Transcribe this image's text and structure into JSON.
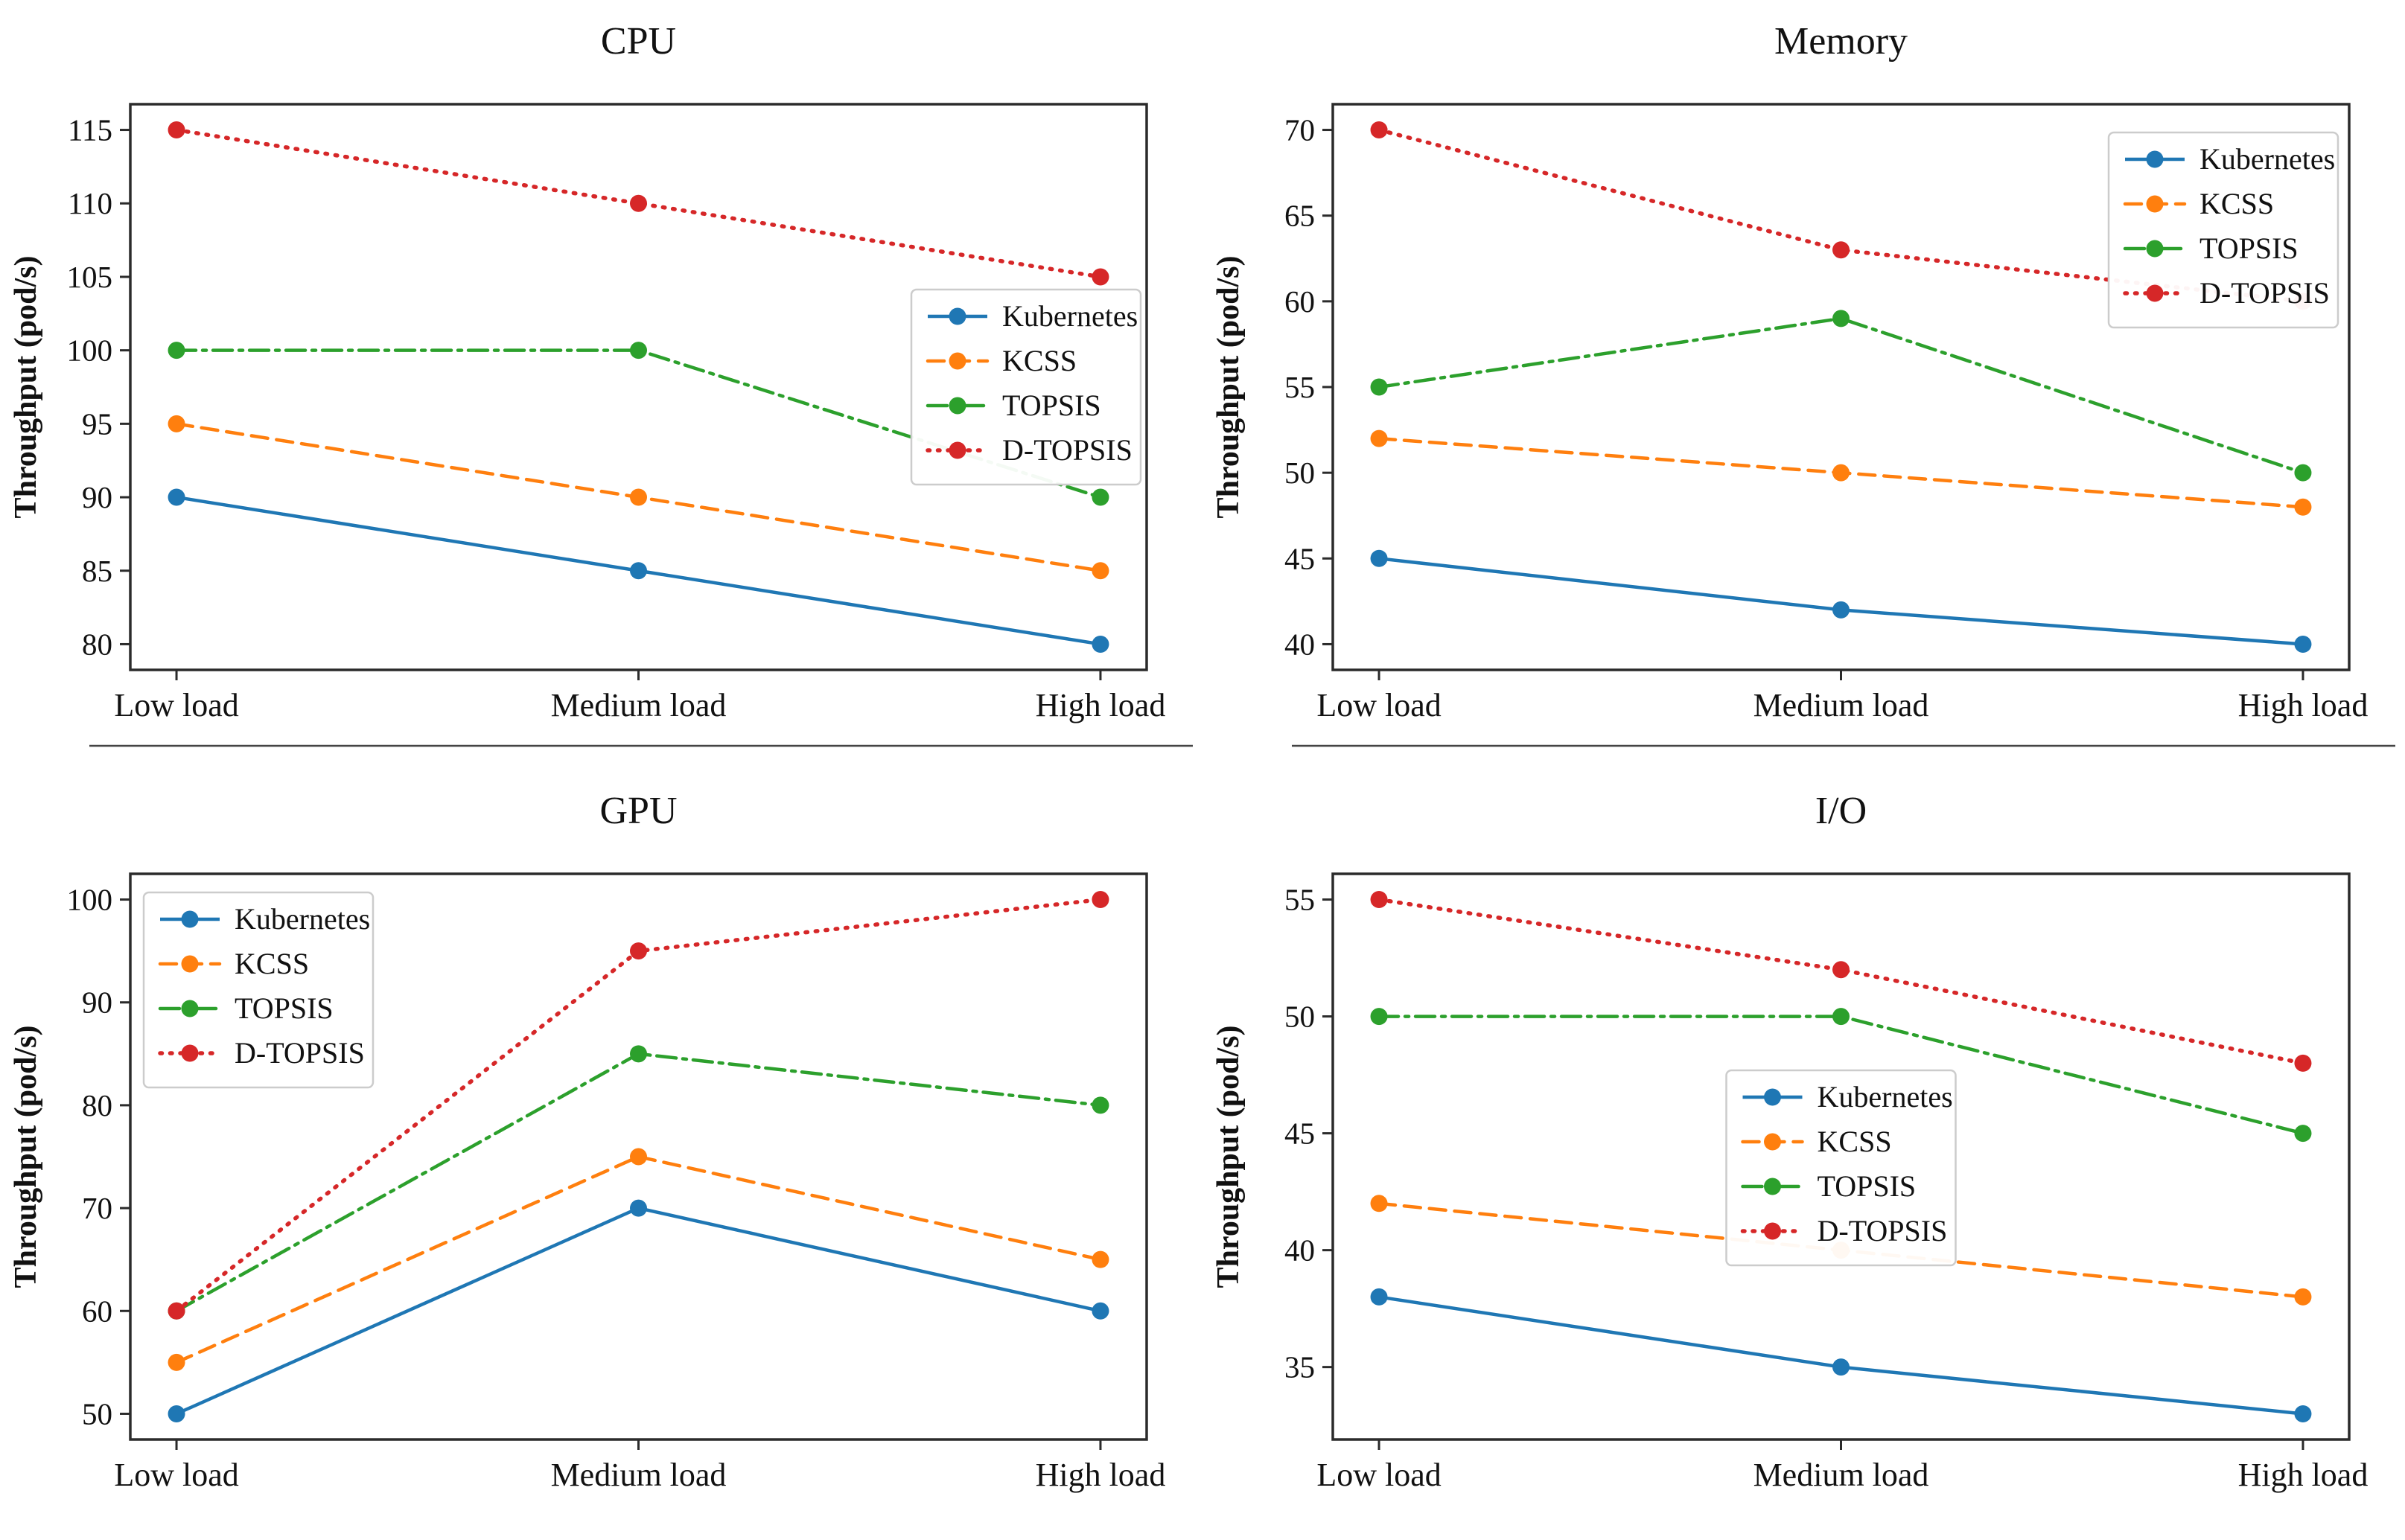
{
  "page": {
    "background": "#ffffff"
  },
  "axis": {
    "ylabel": "Throughput (pod/s)",
    "frame_color": "#2b2b2b",
    "tick_color": "#2b2b2b"
  },
  "chart_data": [
    {
      "type": "line",
      "title": "CPU",
      "ylabel": "Throughput (pod/s)",
      "categories": [
        "Low load",
        "Medium load",
        "High load"
      ],
      "series": [
        {
          "name": "Kubernetes",
          "color": "#1f77b4",
          "style": "solid",
          "values": [
            90,
            85,
            80
          ]
        },
        {
          "name": "KCSS",
          "color": "#ff7f0e",
          "style": "dashed",
          "values": [
            95,
            90,
            85
          ]
        },
        {
          "name": "TOPSIS",
          "color": "#2ca02c",
          "style": "dashdot",
          "values": [
            100,
            100,
            90
          ]
        },
        {
          "name": "D-TOPSIS",
          "color": "#d62728",
          "style": "dotted",
          "values": [
            115,
            110,
            105
          ]
        }
      ],
      "yticks": [
        80,
        85,
        90,
        95,
        100,
        105,
        110,
        115
      ],
      "ylim": [
        78.25,
        116.75
      ],
      "grid": false,
      "legend_loc": "center-right",
      "separator_below": true
    },
    {
      "type": "line",
      "title": "Memory",
      "ylabel": "Throughput (pod/s)",
      "categories": [
        "Low load",
        "Medium load",
        "High load"
      ],
      "series": [
        {
          "name": "Kubernetes",
          "color": "#1f77b4",
          "style": "solid",
          "values": [
            45,
            42,
            40
          ]
        },
        {
          "name": "KCSS",
          "color": "#ff7f0e",
          "style": "dashed",
          "values": [
            52,
            50,
            48
          ]
        },
        {
          "name": "TOPSIS",
          "color": "#2ca02c",
          "style": "dashdot",
          "values": [
            55,
            59,
            50
          ]
        },
        {
          "name": "D-TOPSIS",
          "color": "#d62728",
          "style": "dotted",
          "values": [
            70,
            63,
            60
          ]
        }
      ],
      "yticks": [
        40,
        45,
        50,
        55,
        60,
        65,
        70
      ],
      "ylim": [
        38.5,
        71.5
      ],
      "grid": false,
      "legend_loc": "top-right",
      "separator_below": true
    },
    {
      "type": "line",
      "title": "GPU",
      "ylabel": "Throughput (pod/s)",
      "categories": [
        "Low load",
        "Medium load",
        "High load"
      ],
      "series": [
        {
          "name": "Kubernetes",
          "color": "#1f77b4",
          "style": "solid",
          "values": [
            50,
            70,
            60
          ]
        },
        {
          "name": "KCSS",
          "color": "#ff7f0e",
          "style": "dashed",
          "values": [
            55,
            75,
            65
          ]
        },
        {
          "name": "TOPSIS",
          "color": "#2ca02c",
          "style": "dashdot",
          "values": [
            60,
            85,
            80
          ]
        },
        {
          "name": "D-TOPSIS",
          "color": "#d62728",
          "style": "dotted",
          "values": [
            60,
            95,
            100
          ]
        }
      ],
      "yticks": [
        50,
        60,
        70,
        80,
        90,
        100
      ],
      "ylim": [
        47.5,
        102.5
      ],
      "grid": false,
      "legend_loc": "top-left",
      "separator_below": false
    },
    {
      "type": "line",
      "title": "I/O",
      "ylabel": "Throughput (pod/s)",
      "categories": [
        "Low load",
        "Medium load",
        "High load"
      ],
      "series": [
        {
          "name": "Kubernetes",
          "color": "#1f77b4",
          "style": "solid",
          "values": [
            38,
            35,
            33
          ]
        },
        {
          "name": "KCSS",
          "color": "#ff7f0e",
          "style": "dashed",
          "values": [
            42,
            40,
            38
          ]
        },
        {
          "name": "TOPSIS",
          "color": "#2ca02c",
          "style": "dashdot",
          "values": [
            50,
            50,
            45
          ]
        },
        {
          "name": "D-TOPSIS",
          "color": "#d62728",
          "style": "dotted",
          "values": [
            55,
            52,
            48
          ]
        }
      ],
      "yticks": [
        35,
        40,
        45,
        50,
        55
      ],
      "ylim": [
        31.9,
        56.1
      ],
      "grid": false,
      "legend_loc": "center",
      "separator_below": false
    }
  ]
}
